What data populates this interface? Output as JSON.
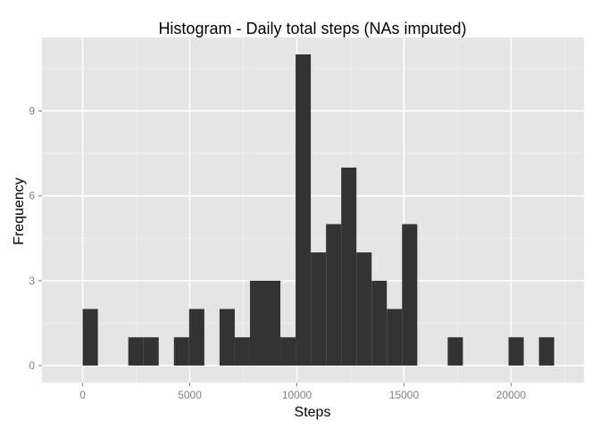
{
  "chart_data": {
    "type": "bar",
    "title": "Histogram - Daily total steps (NAs imputed)",
    "xlabel": "Steps",
    "ylabel": "Frequency",
    "xlim": [
      -1900,
      23400
    ],
    "ylim": [
      -0.6,
      11.6
    ],
    "x_ticks": [
      0,
      5000,
      10000,
      15000,
      20000
    ],
    "y_ticks": [
      0,
      3,
      6,
      9
    ],
    "x_tick_labels": [
      "0",
      "5000",
      "10000",
      "15000",
      "20000"
    ],
    "y_tick_labels": [
      "0",
      "3",
      "6",
      "9"
    ],
    "grid": true,
    "colors": {
      "panel_background": "#e5e5e5",
      "major_grid": "#ffffff",
      "minor_grid": "#f2f2f2",
      "bar_fill": "#333333",
      "tick_label": "#7f7f7f"
    },
    "bins": [
      {
        "x0": 0,
        "x1": 710,
        "count": 2
      },
      {
        "x0": 710,
        "x1": 1420,
        "count": 0
      },
      {
        "x0": 1420,
        "x1": 2130,
        "count": 0
      },
      {
        "x0": 2130,
        "x1": 2840,
        "count": 1
      },
      {
        "x0": 2840,
        "x1": 3550,
        "count": 1
      },
      {
        "x0": 3550,
        "x1": 4260,
        "count": 0
      },
      {
        "x0": 4260,
        "x1": 4970,
        "count": 1
      },
      {
        "x0": 4970,
        "x1": 5680,
        "count": 2
      },
      {
        "x0": 5680,
        "x1": 6390,
        "count": 0
      },
      {
        "x0": 6390,
        "x1": 7100,
        "count": 2
      },
      {
        "x0": 7100,
        "x1": 7810,
        "count": 1
      },
      {
        "x0": 7810,
        "x1": 8520,
        "count": 3
      },
      {
        "x0": 8520,
        "x1": 9230,
        "count": 3
      },
      {
        "x0": 9230,
        "x1": 9940,
        "count": 1
      },
      {
        "x0": 9940,
        "x1": 10650,
        "count": 11
      },
      {
        "x0": 10650,
        "x1": 11360,
        "count": 4
      },
      {
        "x0": 11360,
        "x1": 12070,
        "count": 5
      },
      {
        "x0": 12070,
        "x1": 12780,
        "count": 7
      },
      {
        "x0": 12780,
        "x1": 13490,
        "count": 4
      },
      {
        "x0": 13490,
        "x1": 14200,
        "count": 3
      },
      {
        "x0": 14200,
        "x1": 14910,
        "count": 2
      },
      {
        "x0": 14910,
        "x1": 15620,
        "count": 5
      },
      {
        "x0": 15620,
        "x1": 16330,
        "count": 0
      },
      {
        "x0": 16330,
        "x1": 17040,
        "count": 0
      },
      {
        "x0": 17040,
        "x1": 17750,
        "count": 1
      },
      {
        "x0": 17750,
        "x1": 18460,
        "count": 0
      },
      {
        "x0": 18460,
        "x1": 19170,
        "count": 0
      },
      {
        "x0": 19170,
        "x1": 19880,
        "count": 0
      },
      {
        "x0": 19880,
        "x1": 20590,
        "count": 1
      },
      {
        "x0": 20590,
        "x1": 21300,
        "count": 0
      },
      {
        "x0": 21300,
        "x1": 22010,
        "count": 1
      }
    ]
  }
}
